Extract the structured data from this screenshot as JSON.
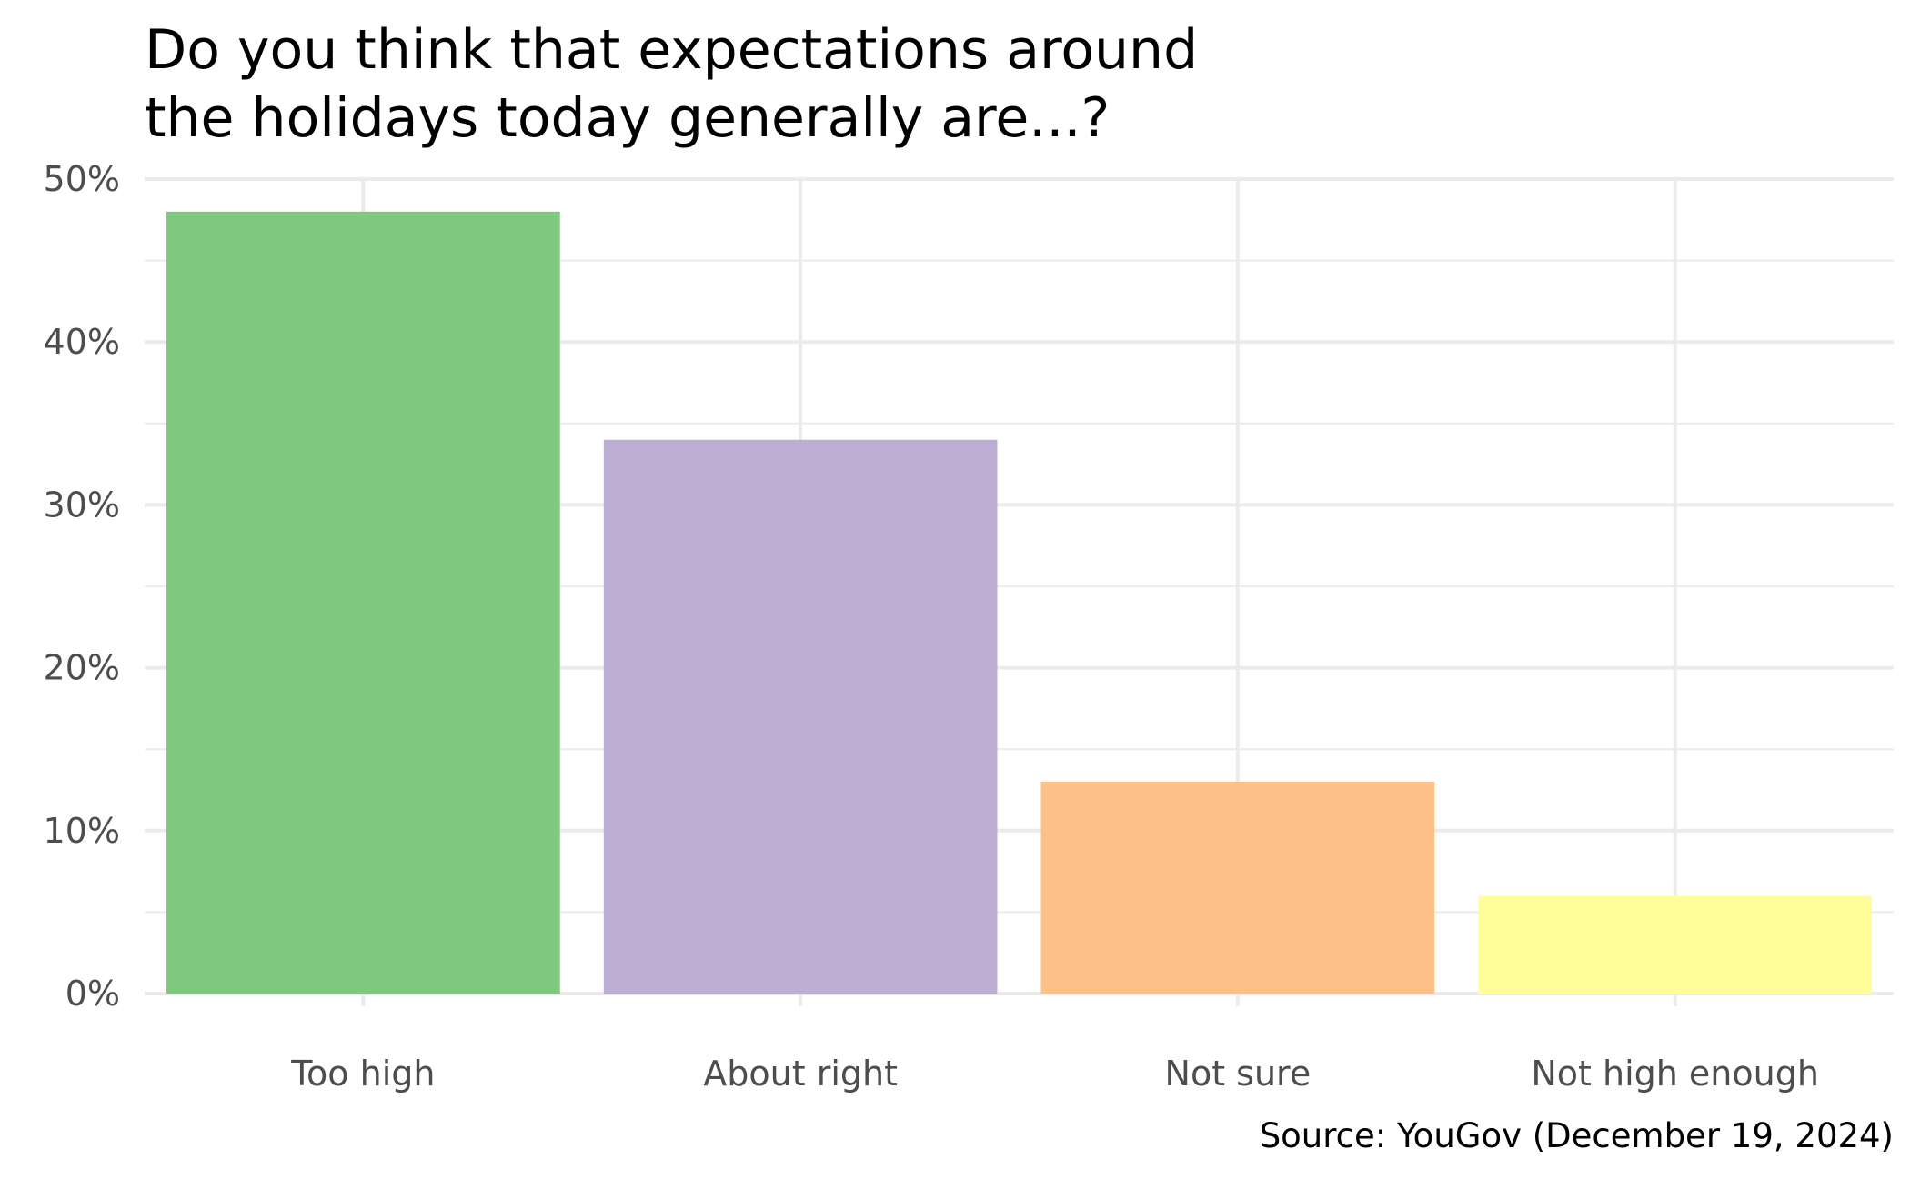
{
  "chart_data": {
    "type": "bar",
    "title": "Do you think that expectations around the holidays today generally are...?",
    "title_lines": [
      "Do you think that expectations around",
      "the holidays today generally are...?"
    ],
    "categories": [
      "Too high",
      "About right",
      "Not sure",
      "Not high enough"
    ],
    "values": [
      48,
      34,
      13,
      6
    ],
    "colors": [
      "#7fc97f",
      "#beaed4",
      "#fdc086",
      "#ffff99"
    ],
    "xlabel": "",
    "ylabel": "",
    "ylim": [
      0,
      50
    ],
    "yticks": [
      0,
      10,
      20,
      30,
      40,
      50
    ],
    "ytick_labels": [
      "0%",
      "10%",
      "20%",
      "30%",
      "40%",
      "50%"
    ],
    "grid": true,
    "legend": "none",
    "caption": "Source: YouGov (December 19, 2024)"
  }
}
